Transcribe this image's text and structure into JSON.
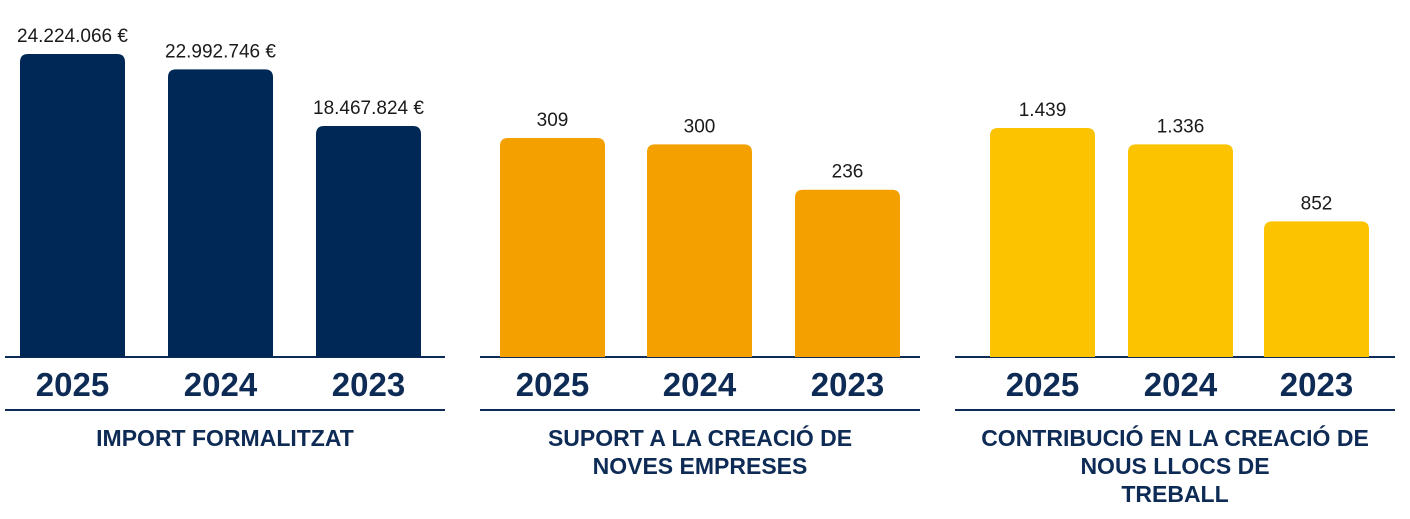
{
  "chart_data": [
    {
      "type": "bar",
      "categories": [
        "2025",
        "2024",
        "2023"
      ],
      "values": [
        24224066,
        22992746,
        18467824
      ],
      "value_labels": [
        "24.224.066 €",
        "22.992.746 €",
        "18.467.824 €"
      ],
      "title_lines": [
        "IMPORT FORMALITZAT"
      ],
      "ylim": [
        0,
        24224066
      ],
      "grid": false,
      "color": "#002856"
    },
    {
      "type": "bar",
      "categories": [
        "2025",
        "2024",
        "2023"
      ],
      "values": [
        309,
        300,
        236
      ],
      "value_labels": [
        "309",
        "300",
        "236"
      ],
      "title_lines": [
        "SUPORT A LA CREACIÓ DE",
        "NOVES EMPRESES"
      ],
      "ylim": [
        0,
        309
      ],
      "grid": false,
      "color": "#F4A000"
    },
    {
      "type": "bar",
      "categories": [
        "2025",
        "2024",
        "2023"
      ],
      "values": [
        1439,
        1336,
        852
      ],
      "value_labels": [
        "1.439",
        "1.336",
        "852"
      ],
      "title_lines": [
        "CONTRIBUCIÓ EN LA CREACIÓ DE",
        "NOUS LLOCS DE",
        "TREBALL"
      ],
      "ylim": [
        0,
        1439
      ],
      "grid": false,
      "color": "#FBC300"
    }
  ]
}
